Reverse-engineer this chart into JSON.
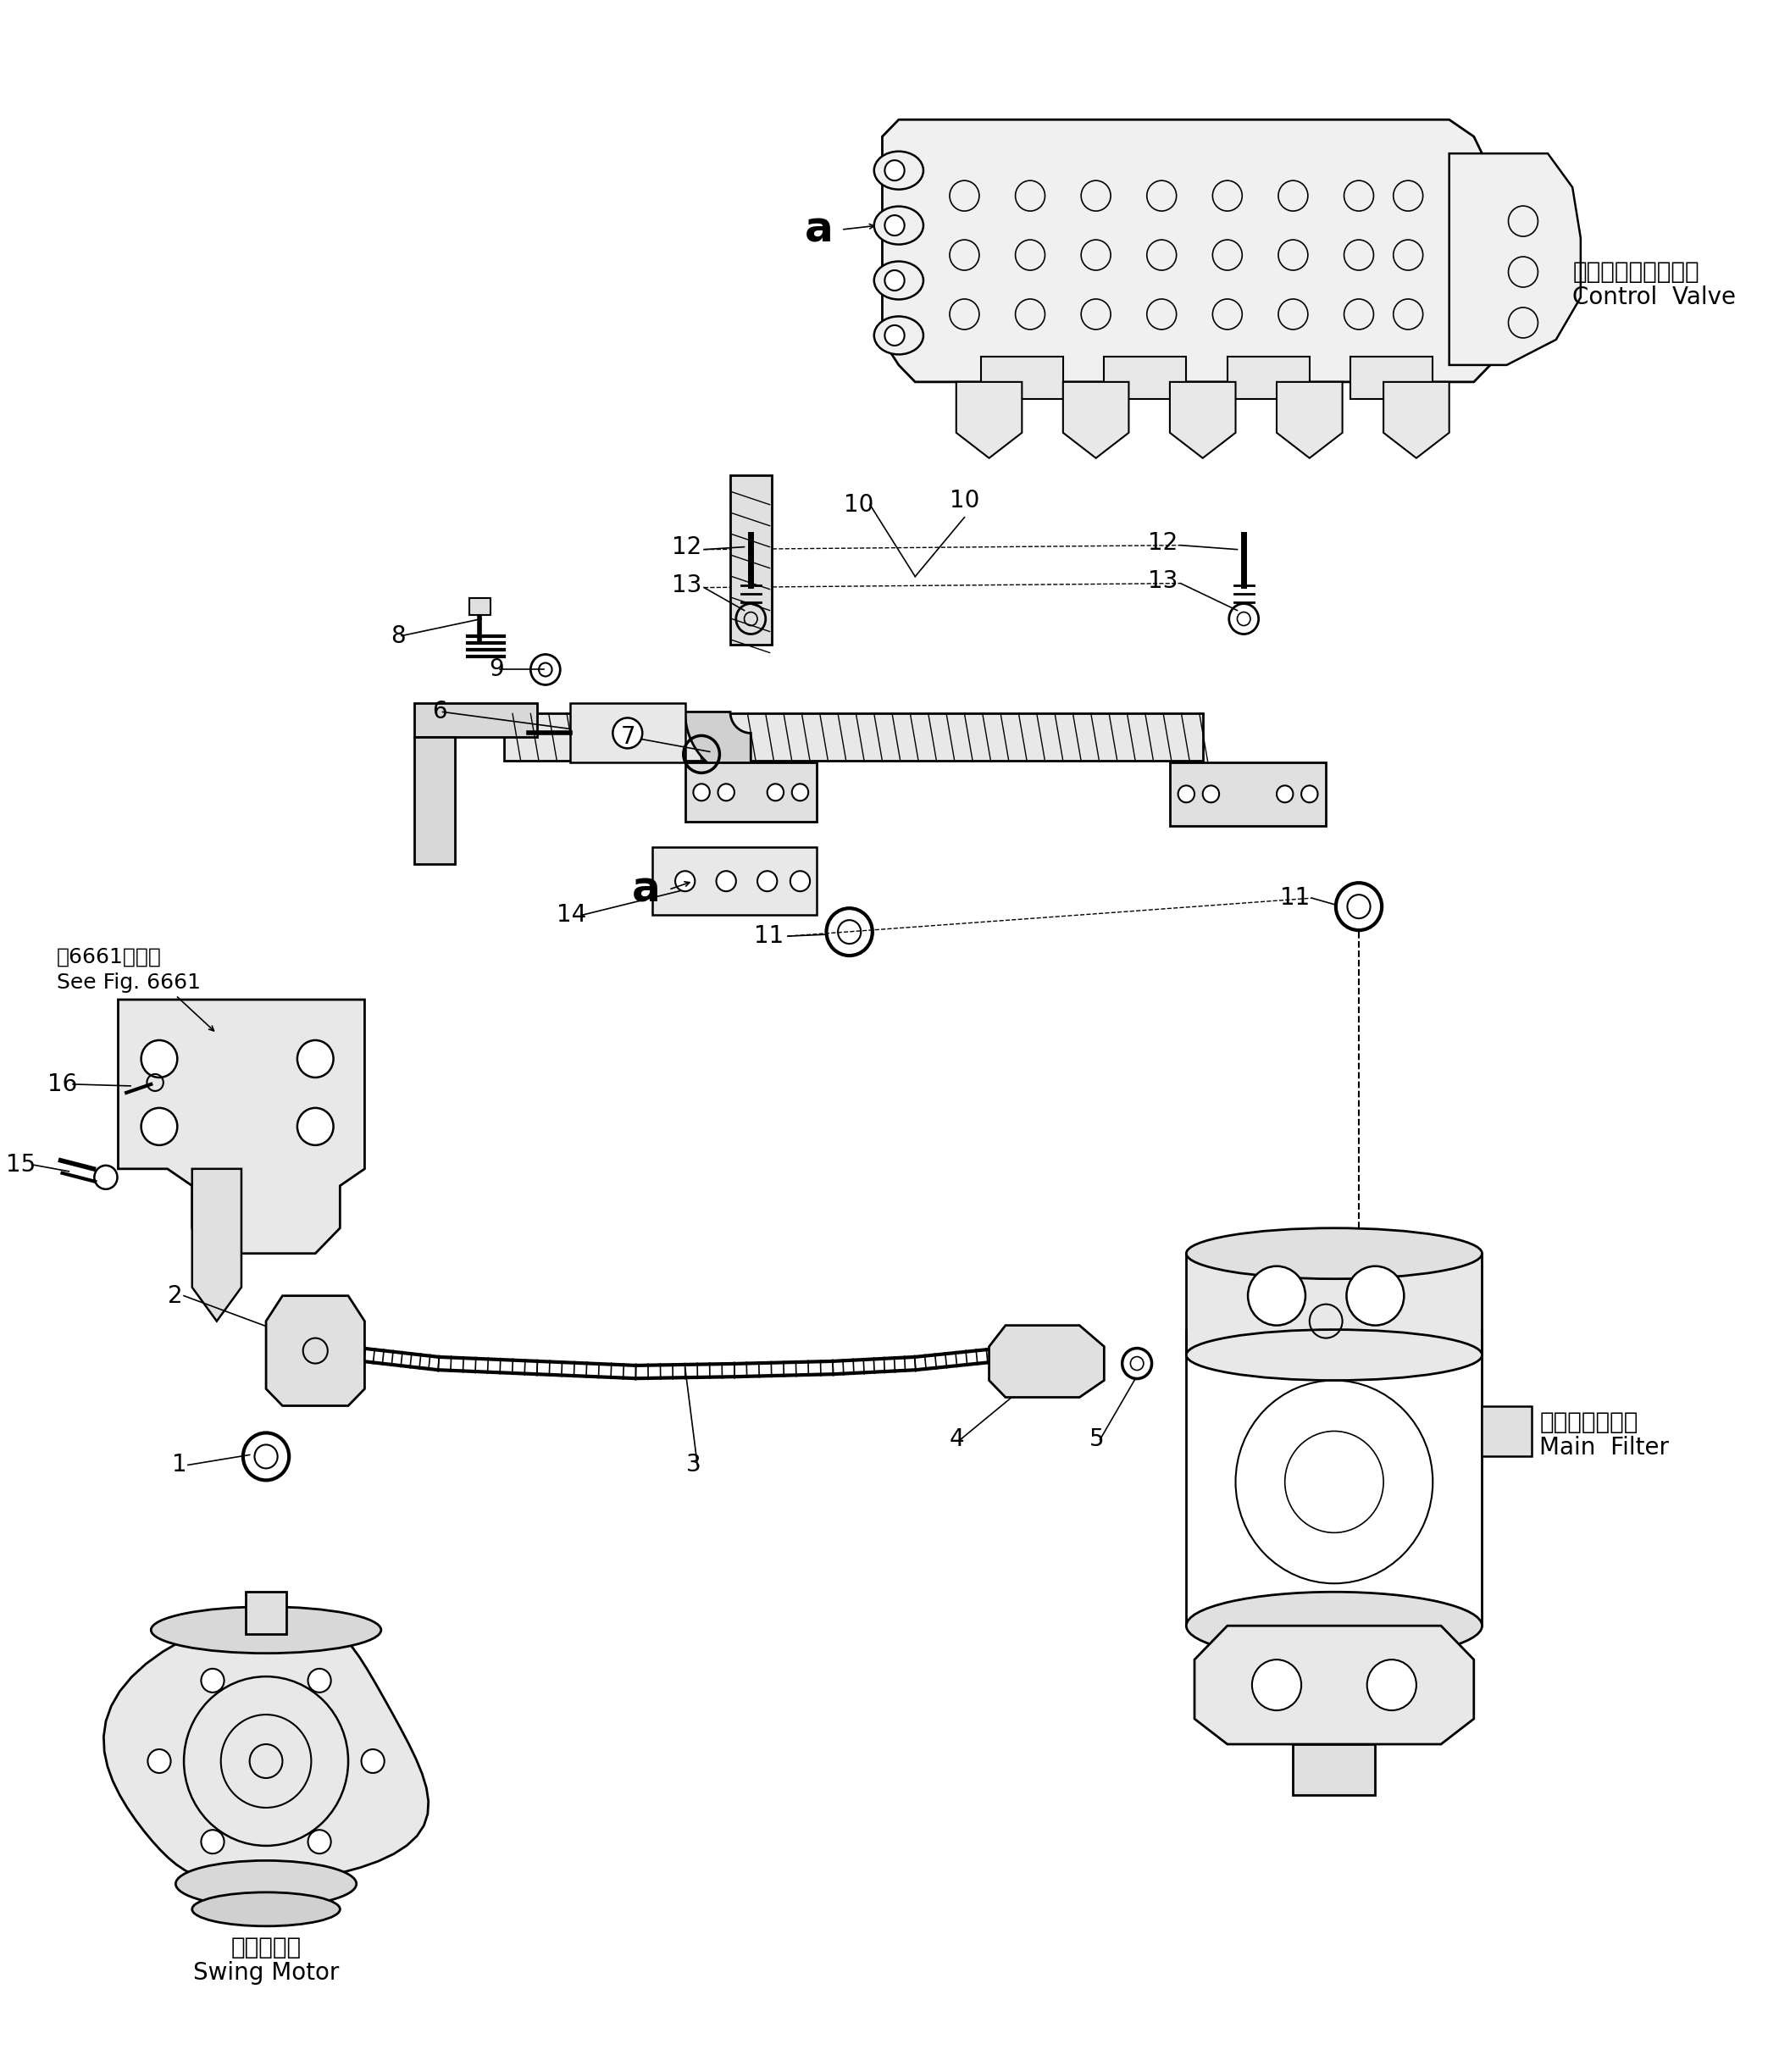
{
  "bg_color": "#ffffff",
  "line_color": "#000000",
  "fig_width": 20.87,
  "fig_height": 24.46,
  "labels": {
    "control_valve_jp": "コントロールバルブ",
    "control_valve_en": "Control  Valve",
    "main_filter_jp": "メインフィルタ",
    "main_filter_en": "Main  Filter",
    "swing_motor_jp": "旋回モータ",
    "swing_motor_en": "Swing Motor",
    "see_fig_jp": "第6661図参照",
    "see_fig_en": "See Fig. 6661"
  }
}
